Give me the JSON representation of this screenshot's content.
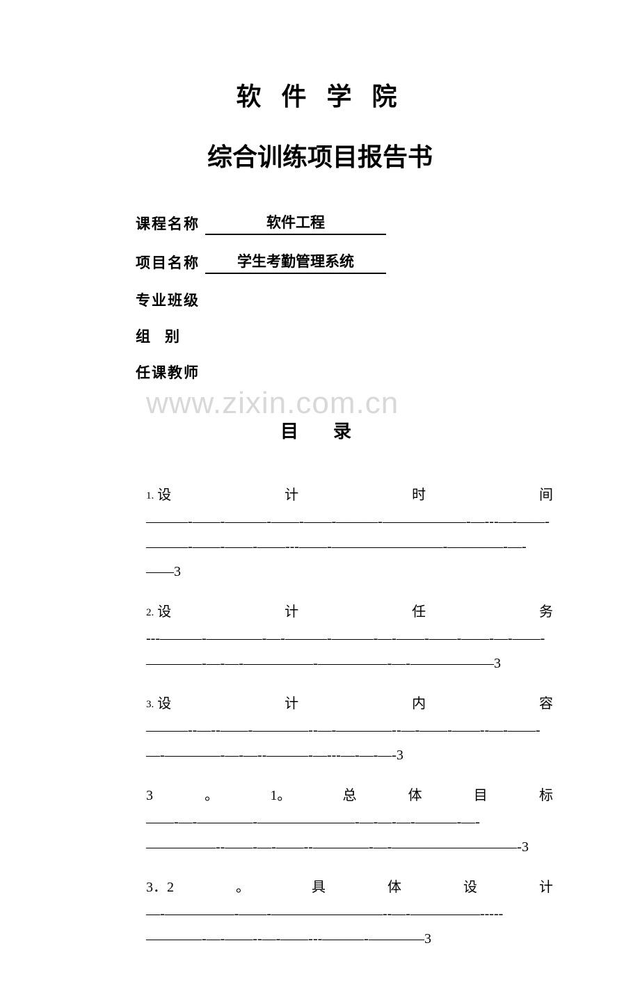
{
  "watermark": "www.zixin.com.cn",
  "header": {
    "line1": "软 件 学 院",
    "line2": "综合训练项目报告书"
  },
  "form": {
    "row1_label": "课程名称",
    "row1_value": "软件工程",
    "row2_label": "项目名称",
    "row2_value": "学生考勤管理系统",
    "row3_label": "专业班级",
    "row4_label": "组　别",
    "row5_label": "任课教师"
  },
  "toc_title": "目　录",
  "toc": {
    "entry1": {
      "num": "1.",
      "c1": "设",
      "c2": "计",
      "c3": "时",
      "c4": "间",
      "dashes": "———-——-———-——-——-———-——————-—---—-——-———-——-——-——---——-————————-————-—-——3"
    },
    "entry2": {
      "num": "2.",
      "c1": "设",
      "c2": "计",
      "c3": "任",
      "c4": "务",
      "dashes": "---———-————-—-———-———-—-——-——-——-—-——-————-—-—-—————-—————-—-——————3"
    },
    "entry3": {
      "num": "3.",
      "c1": "设",
      "c2": "计",
      "c3": "内",
      "c4": "容",
      "dashes": "———--—--——-————--—-————--—-——-——--—-——-—-————-—-—--———-—---—-—-—-3"
    },
    "entry4": {
      "n1": "3",
      "dot": "。",
      "n2": "1。",
      "c1": "总",
      "c2": "体",
      "c3": "目",
      "c4": "标",
      "dashes": "——-—-————-———————-—-—-—-———-—-—————--——-—-——--————-—-—————————-3"
    },
    "entry5": {
      "n1": "3．2",
      "dot": "。",
      "c1": "具",
      "c2": "体",
      "c3": "设",
      "c4": "计",
      "dashes": "—-—————-——-————————--—-—————-----————-—-——--—-——---———-————3"
    }
  }
}
